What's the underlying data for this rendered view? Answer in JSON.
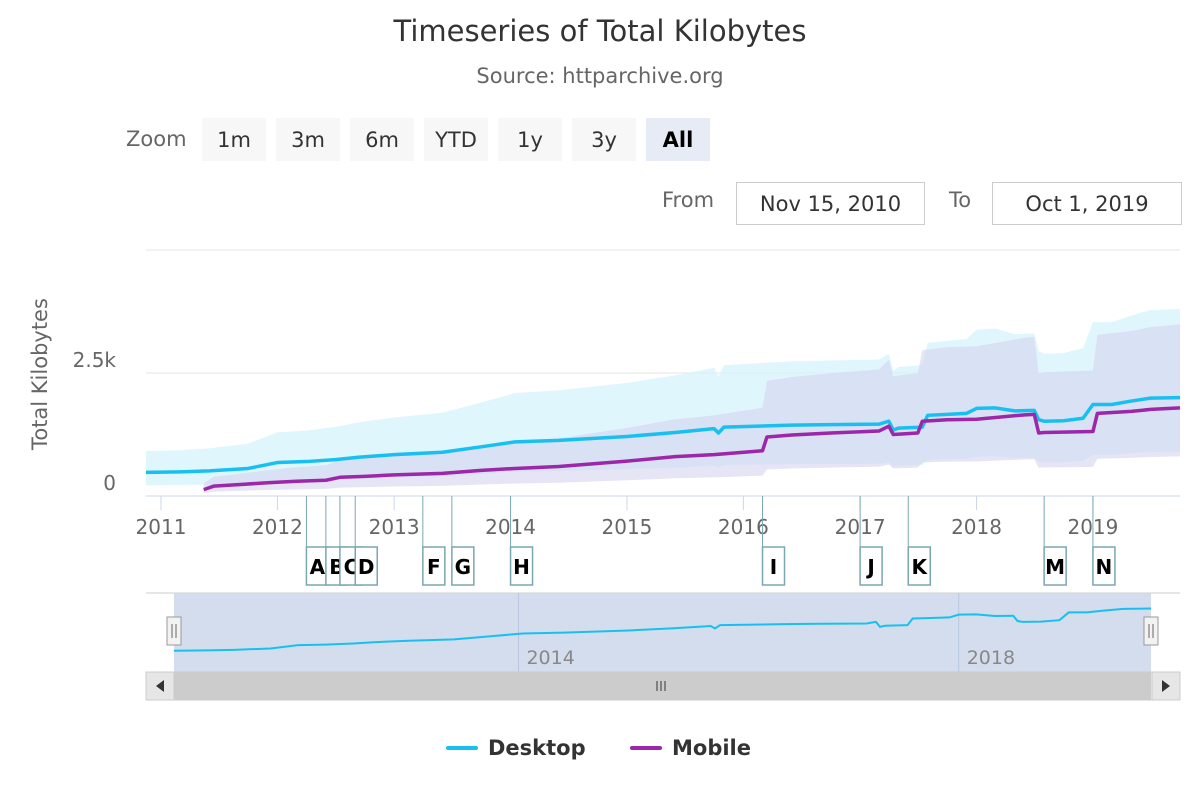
{
  "title": "Timeseries of Total Kilobytes",
  "subtitle": "Source: httparchive.org",
  "zoom": {
    "label": "Zoom",
    "buttons": [
      "1m",
      "3m",
      "6m",
      "YTD",
      "1y",
      "3y",
      "All"
    ],
    "active": "All"
  },
  "range": {
    "from_label": "From",
    "from_value": "Nov 15, 2010",
    "to_label": "To",
    "to_value": "Oct 1, 2019"
  },
  "colors": {
    "desktop": "#18c0f0",
    "mobile": "#9c27a8",
    "desktop_band": "#d6f3fc",
    "mobile_band": "#d4d3ef",
    "navigator_fill": "#cdd7ea",
    "scrollbar": "#cccccc"
  },
  "legend": [
    {
      "name": "Desktop",
      "color": "#18c0f0"
    },
    {
      "name": "Mobile",
      "color": "#9c27a8"
    }
  ],
  "chart_data": {
    "type": "line",
    "ylabel": "Total Kilobytes",
    "y_ticks": [
      0,
      2500
    ],
    "y_tick_labels": [
      "0",
      "2.5k"
    ],
    "ylim": [
      0,
      5000
    ],
    "x_range": [
      "2010-11-15",
      "2019-10-01"
    ],
    "x_tick_labels": [
      "2011",
      "2012",
      "2013",
      "2014",
      "2015",
      "2016",
      "2017",
      "2018",
      "2019"
    ],
    "series": [
      {
        "name": "Desktop",
        "x": [
          "2010-11-15",
          "2011-03-01",
          "2011-06-01",
          "2011-10-01",
          "2012-01-01",
          "2012-04-01",
          "2012-07-01",
          "2012-09-15",
          "2013-01-01",
          "2013-06-01",
          "2013-10-01",
          "2014-01-15",
          "2014-06-01",
          "2015-01-01",
          "2015-06-01",
          "2015-10-01",
          "2015-10-15",
          "2015-11-01",
          "2016-06-01",
          "2016-10-01",
          "2017-03-01",
          "2017-04-01",
          "2017-04-15",
          "2017-05-01",
          "2017-07-15",
          "2017-08-01",
          "2017-10-01",
          "2017-12-01",
          "2018-01-01",
          "2018-03-01",
          "2018-05-01",
          "2018-07-01",
          "2018-07-15",
          "2018-08-01",
          "2018-10-01",
          "2018-12-01",
          "2019-01-01",
          "2019-03-01",
          "2019-05-01",
          "2019-07-01",
          "2019-10-01"
        ],
        "values": [
          480,
          490,
          510,
          560,
          680,
          700,
          740,
          790,
          840,
          890,
          1000,
          1100,
          1130,
          1210,
          1290,
          1370,
          1280,
          1400,
          1440,
          1450,
          1460,
          1520,
          1340,
          1380,
          1400,
          1640,
          1660,
          1680,
          1780,
          1790,
          1730,
          1740,
          1550,
          1520,
          1530,
          1580,
          1860,
          1860,
          1930,
          1990,
          2000
        ]
      },
      {
        "name": "Mobile",
        "x": [
          "2011-05-15",
          "2011-06-15",
          "2011-09-01",
          "2011-12-01",
          "2012-03-01",
          "2012-06-01",
          "2012-07-15",
          "2012-10-01",
          "2013-01-01",
          "2013-06-01",
          "2013-10-01",
          "2014-01-15",
          "2014-06-01",
          "2015-01-01",
          "2015-06-01",
          "2015-10-01",
          "2016-03-01",
          "2016-03-15",
          "2016-06-01",
          "2016-10-01",
          "2017-03-01",
          "2017-04-01",
          "2017-04-15",
          "2017-07-01",
          "2017-07-15",
          "2017-10-01",
          "2018-01-01",
          "2018-06-01",
          "2018-07-01",
          "2018-07-15",
          "2018-08-01",
          "2019-01-01",
          "2019-01-15",
          "2019-05-01",
          "2019-07-01",
          "2019-10-01"
        ],
        "values": [
          130,
          200,
          230,
          270,
          300,
          320,
          380,
          400,
          430,
          460,
          520,
          560,
          600,
          710,
          800,
          840,
          920,
          1200,
          1240,
          1280,
          1320,
          1420,
          1250,
          1280,
          1520,
          1550,
          1560,
          1650,
          1660,
          1280,
          1290,
          1310,
          1680,
          1720,
          1760,
          1790
        ]
      }
    ],
    "flags": [
      {
        "label": "A",
        "x": "2012-04-01"
      },
      {
        "label": "B",
        "x": "2012-06-01"
      },
      {
        "label": "C",
        "x": "2012-07-15"
      },
      {
        "label": "D",
        "x": "2012-09-01"
      },
      {
        "label": "F",
        "x": "2013-04-01"
      },
      {
        "label": "G",
        "x": "2013-07-01"
      },
      {
        "label": "H",
        "x": "2014-01-01"
      },
      {
        "label": "I",
        "x": "2016-03-01"
      },
      {
        "label": "J",
        "x": "2017-01-01"
      },
      {
        "label": "K",
        "x": "2017-06-01"
      },
      {
        "label": "M",
        "x": "2018-08-01"
      },
      {
        "label": "N",
        "x": "2019-01-01"
      }
    ],
    "navigator": {
      "x_tick_labels": [
        "2014",
        "2018"
      ],
      "selected_range": [
        "2010-11-15",
        "2019-10-01"
      ]
    },
    "grid": true,
    "legend_position": "bottom-center"
  }
}
